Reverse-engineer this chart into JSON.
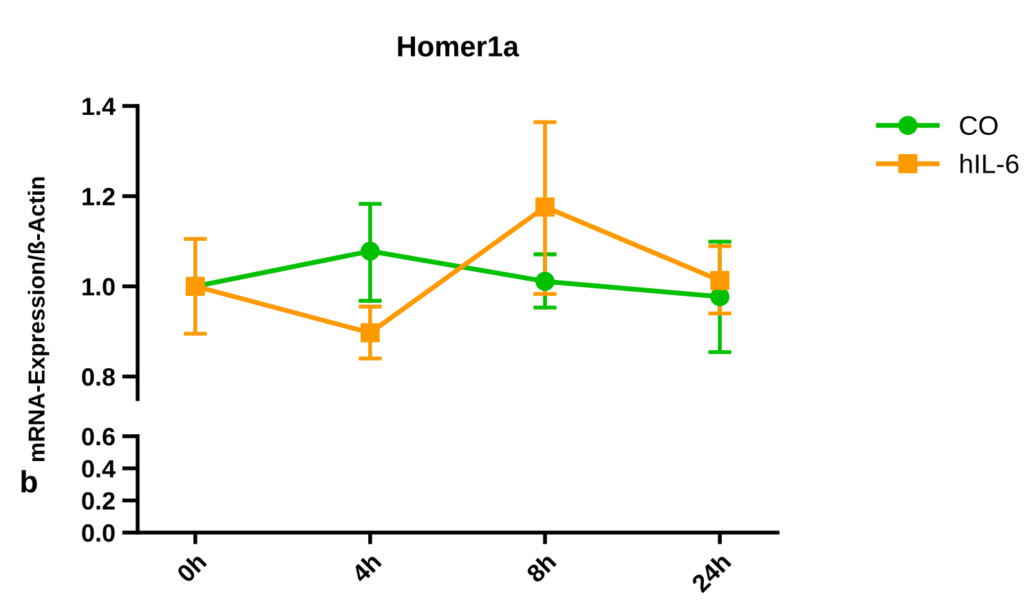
{
  "chart_data": [
    {
      "type": "line",
      "title": "Homer1a",
      "ylabel": "mRNA-Expression/ß-Actin",
      "ylim": [
        0.75,
        1.4
      ],
      "yticks": [
        {
          "value": 0.8,
          "label": "0.8"
        },
        {
          "value": 1.0,
          "label": "1.0"
        },
        {
          "value": 1.2,
          "label": "1.2"
        },
        {
          "value": 1.4,
          "label": "1.4"
        }
      ],
      "tick_labels": "y",
      "legend": "top right",
      "grid": false,
      "series": [
        {
          "name": "CO",
          "color": "#00c000",
          "marker": "circle",
          "values": [
            1.0,
            1.078,
            1.011,
            0.977
          ],
          "errors": [
            null,
            [
              0.968,
              1.183
            ],
            [
              0.953,
              1.071
            ],
            [
              0.854,
              1.099
            ]
          ]
        },
        {
          "name": "hIL-6",
          "color": "#ff9900",
          "marker": "square",
          "values": [
            1.0,
            0.897,
            1.176,
            1.013
          ],
          "errors": [
            [
              0.895,
              1.105
            ],
            [
              0.84,
              0.955
            ],
            [
              0.983,
              1.364
            ],
            [
              0.94,
              1.089
            ]
          ]
        }
      ]
    },
    {
      "type": "line",
      "categories": [
        "0h",
        "4h",
        "8h",
        "24h"
      ],
      "ylim": [
        0,
        0.6
      ],
      "yticks": [
        {
          "value": 0,
          "label": "0.0"
        },
        {
          "value": 0.2,
          "label": "0.2"
        },
        {
          "value": 0.4,
          "label": "0.4"
        },
        {
          "value": 0.6,
          "label": "0.6"
        }
      ],
      "grid": false,
      "annotations": [
        "b"
      ]
    }
  ]
}
